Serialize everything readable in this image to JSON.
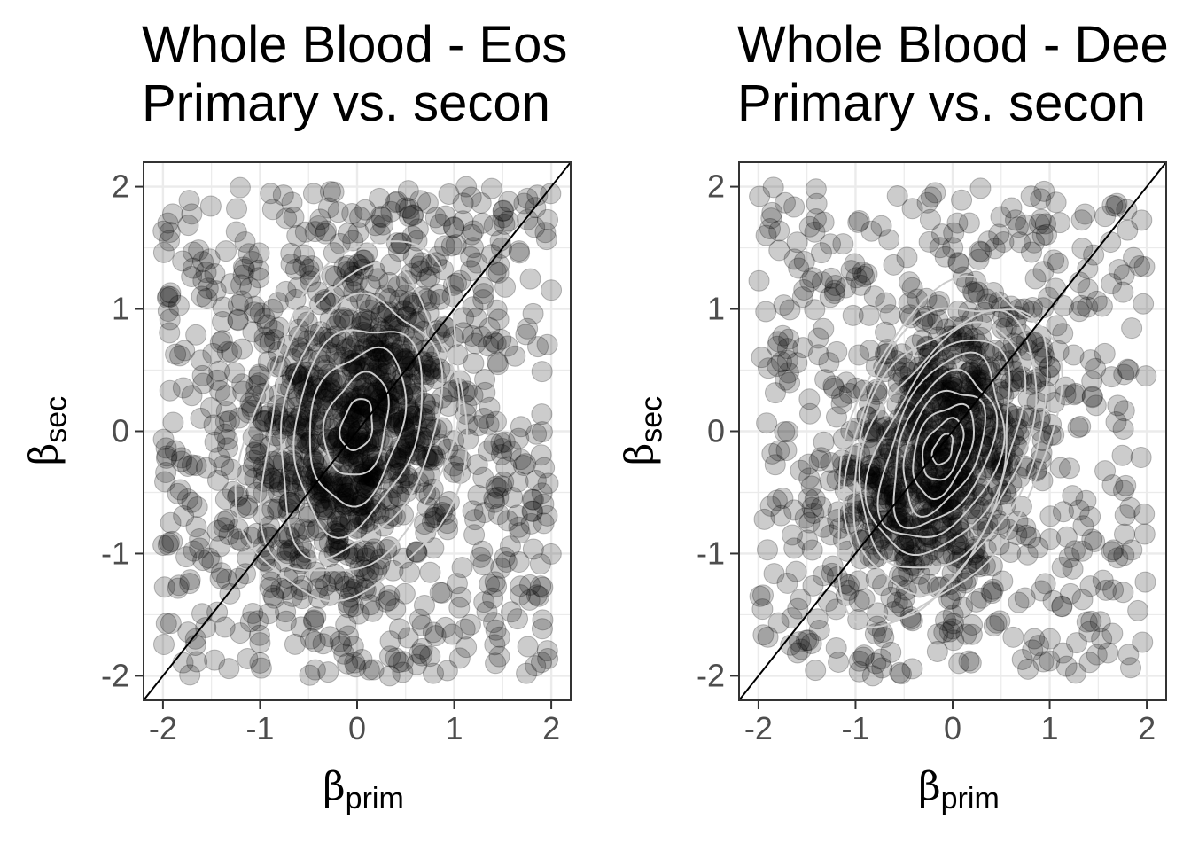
{
  "chart_data": [
    {
      "type": "scatter",
      "title_line1": "Whole Blood - Eos",
      "title_line2": "Primary vs. secon",
      "xlabel": "β",
      "xlabel_sub": "prim",
      "ylabel": "β",
      "ylabel_sub": "sec",
      "xlim": [
        -2.2,
        2.2
      ],
      "ylim": [
        -2.2,
        2.2
      ],
      "xticks": [
        "-2",
        "-1",
        "0",
        "1",
        "2"
      ],
      "yticks": [
        "-2",
        "-1",
        "0",
        "1",
        "2"
      ],
      "grid": true,
      "identity_line": true,
      "density_contours": true,
      "density_center": [
        0.0,
        0.05
      ],
      "density_sd": [
        0.55,
        0.7
      ],
      "density_rho": 0.25,
      "contour_levels": 7,
      "point_color": "#000000",
      "point_alpha": 0.2,
      "contour_color": "#cccccc",
      "n_points": 1400
    },
    {
      "type": "scatter",
      "title_line1": "Whole Blood - Dee",
      "title_line2": "Primary vs. secon",
      "xlabel": "β",
      "xlabel_sub": "prim",
      "ylabel": "β",
      "ylabel_sub": "sec",
      "xlim": [
        -2.2,
        2.2
      ],
      "ylim": [
        -2.2,
        2.2
      ],
      "xticks": [
        "-2",
        "-1",
        "0",
        "1",
        "2"
      ],
      "yticks": [
        "-2",
        "-1",
        "0",
        "1",
        "2"
      ],
      "grid": true,
      "identity_line": true,
      "density_contours": true,
      "density_center": [
        -0.1,
        -0.15
      ],
      "density_sd": [
        0.5,
        0.6
      ],
      "density_rho": 0.4,
      "contour_levels": 11,
      "point_color": "#000000",
      "point_alpha": 0.2,
      "contour_color": "#cccccc",
      "n_points": 1200
    }
  ]
}
